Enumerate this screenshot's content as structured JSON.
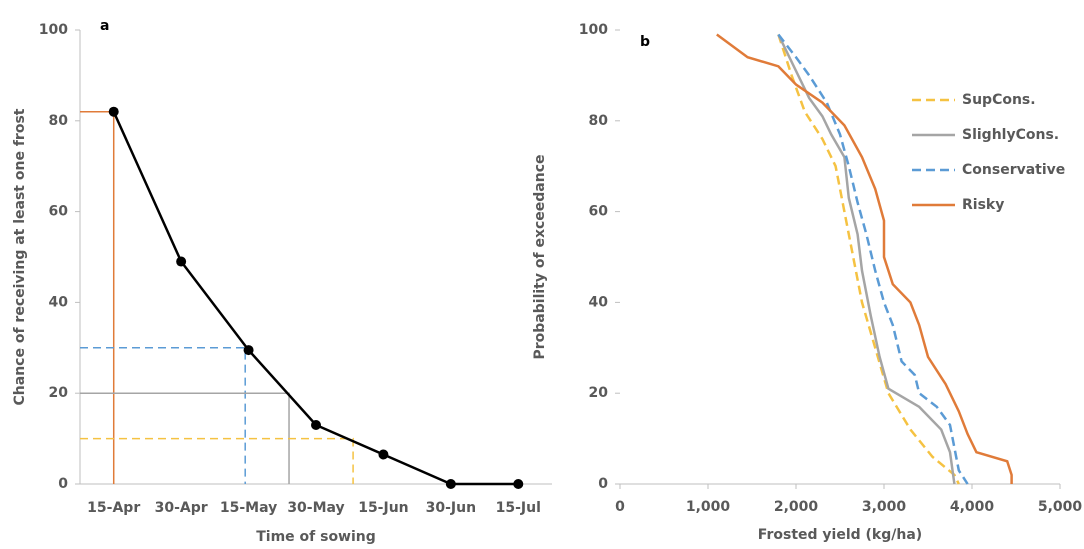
{
  "chart_data": [
    {
      "type": "line",
      "panel_label": "a",
      "x_label": "Time of sowing",
      "y_label": "Chance of receiving at least one frost",
      "categories": [
        "15-Apr",
        "30-Apr",
        "15-May",
        "30-May",
        "15-Jun",
        "30-Jun",
        "15-Jul"
      ],
      "values": [
        82,
        49,
        29.5,
        13,
        6.5,
        0,
        0
      ],
      "color": "#000000",
      "ylim": [
        0,
        100
      ],
      "yticks": [
        0,
        20,
        40,
        60,
        80,
        100
      ],
      "reference_lines": [
        {
          "color": "#e07b39",
          "y": 82,
          "x": 0,
          "dash": false
        },
        {
          "color": "#5b9bd5",
          "y": 30,
          "x": 1.95,
          "dash": true
        },
        {
          "color": "#a5a5a5",
          "y": 20,
          "x": 2.6,
          "dash": false
        },
        {
          "color": "#f5c242",
          "y": 10,
          "x": 3.55,
          "dash": true
        }
      ]
    },
    {
      "type": "curves",
      "panel_label": "b",
      "x_label": "Frosted yield (kg/ha)",
      "y_label": "Probability of exceedance",
      "xlim": [
        0,
        5000
      ],
      "xticks": [
        0,
        {
          "value": 1000,
          "label": "1,000"
        },
        {
          "value": 2000,
          "label": "2,000"
        },
        {
          "value": 3000,
          "label": "3,000"
        },
        {
          "value": 4000,
          "label": "4,000"
        },
        {
          "value": 5000,
          "label": "5,000"
        }
      ],
      "ylim": [
        0,
        100
      ],
      "yticks": [
        0,
        20,
        40,
        60,
        80,
        100
      ],
      "series": [
        {
          "name": "SupCons.",
          "color": "#f5c242",
          "dash": true,
          "x": [
            1800,
            1950,
            2100,
            2300,
            2450,
            2550,
            2650,
            2750,
            2900,
            3050,
            3300,
            3550,
            3800,
            3850
          ],
          "y": [
            99,
            90,
            82,
            76,
            70,
            60,
            50,
            40,
            30,
            20,
            12,
            6,
            2,
            0
          ]
        },
        {
          "name": "SlighlyCons.",
          "color": "#a5a5a5",
          "dash": false,
          "x": [
            1800,
            2000,
            2150,
            2300,
            2400,
            2550,
            2600,
            2700,
            2750,
            2850,
            2950,
            3050,
            3400,
            3650,
            3750,
            3800
          ],
          "y": [
            99,
            91,
            85,
            81,
            77,
            72,
            63,
            55,
            47,
            37,
            28,
            21,
            17,
            12,
            7,
            0
          ]
        },
        {
          "name": "Conservative",
          "color": "#5b9bd5",
          "dash": true,
          "x": [
            1800,
            2000,
            2150,
            2350,
            2500,
            2600,
            2700,
            2800,
            2900,
            3000,
            3100,
            3200,
            3350,
            3400,
            3600,
            3750,
            3800,
            3850,
            3950
          ],
          "y": [
            99,
            94,
            90,
            84,
            77,
            70,
            62,
            55,
            47,
            40,
            35,
            27,
            24,
            20,
            17,
            13,
            8,
            3,
            0
          ]
        },
        {
          "name": "Risky",
          "color": "#e07b39",
          "dash": false,
          "x": [
            1100,
            1450,
            1800,
            2000,
            2300,
            2550,
            2750,
            2900,
            3000,
            3000,
            3100,
            3300,
            3400,
            3500,
            3700,
            3850,
            3950,
            4050,
            4400,
            4450,
            4450
          ],
          "y": [
            99,
            94,
            92,
            88,
            84,
            79,
            72,
            65,
            58,
            50,
            44,
            40,
            35,
            28,
            22,
            16,
            11,
            7,
            5,
            2,
            0
          ]
        }
      ]
    }
  ]
}
